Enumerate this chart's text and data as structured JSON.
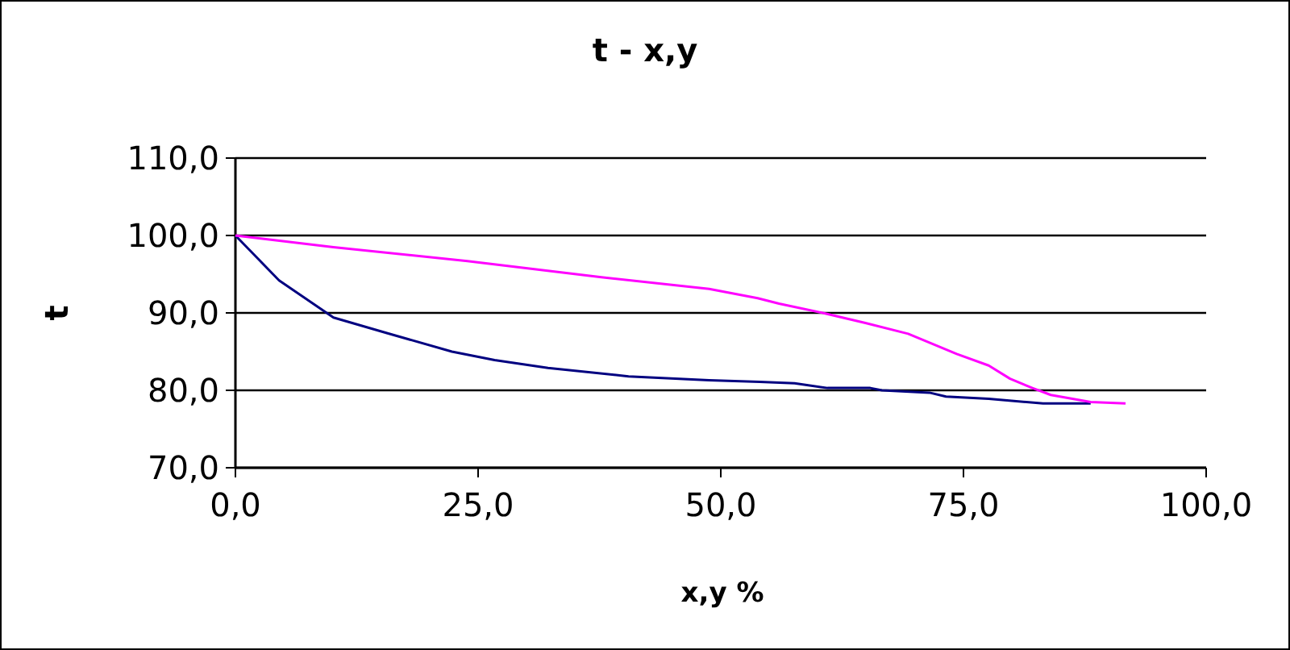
{
  "chart_data": {
    "type": "line",
    "title": "t - x,y",
    "xlabel": "x,y %",
    "ylabel": "t",
    "xlim": [
      0,
      100
    ],
    "xticks": [
      {
        "value": 0,
        "label": "0,0"
      },
      {
        "value": 25,
        "label": "25,0"
      },
      {
        "value": 50,
        "label": "50,0"
      },
      {
        "value": 75,
        "label": "75,0"
      },
      {
        "value": 100,
        "label": "100,0"
      }
    ],
    "ylim": [
      70,
      110
    ],
    "yticks": [
      {
        "value": 70,
        "label": "70,0"
      },
      {
        "value": 80,
        "label": "80,0"
      },
      {
        "value": 90,
        "label": "90,0"
      },
      {
        "value": 100,
        "label": "100,0"
      },
      {
        "value": 110,
        "label": "110,0"
      }
    ],
    "grid": "y",
    "marker": "none",
    "line_style": "solid",
    "series": [
      {
        "color": "#000080",
        "x": [
          0,
          4.5,
          10.1,
          15.6,
          22.3,
          26.7,
          32.2,
          40.5,
          48.8,
          54,
          57.6,
          61,
          65.4,
          66.6,
          71.5,
          73.2,
          77.6,
          83.2,
          88.1
        ],
        "values": [
          100,
          94.2,
          89.4,
          87.4,
          85,
          83.9,
          82.9,
          81.8,
          81.3,
          81.1,
          80.9,
          80.3,
          80.3,
          80,
          79.7,
          79.2,
          78.9,
          78.3,
          78.3
        ]
      },
      {
        "color": "#ff00ff",
        "x": [
          0,
          10.1,
          23.9,
          37.7,
          48.8,
          53.8,
          56,
          60.5,
          64.9,
          69.3,
          74.3,
          77.6,
          79.8,
          82.1,
          84,
          88.1,
          91.7
        ],
        "values": [
          100,
          98.5,
          96.7,
          94.6,
          93.1,
          91.9,
          91.2,
          90,
          88.7,
          87.3,
          84.7,
          83.2,
          81.5,
          80.3,
          79.4,
          78.5,
          78.3
        ]
      }
    ]
  }
}
